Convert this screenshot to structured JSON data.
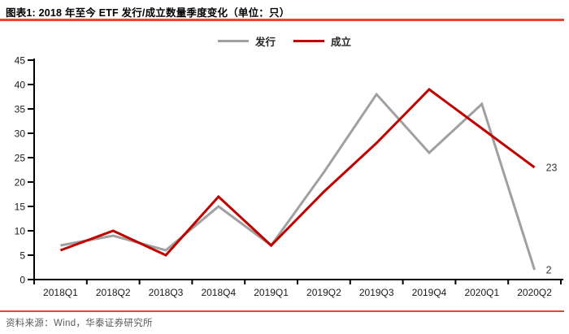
{
  "header": {
    "title": "图表1: 2018 年至今 ETF 发行/成立数量季度变化（单位：只）"
  },
  "footer": {
    "source": "资料来源：Wind，华泰证券研究所"
  },
  "colors": {
    "accent_red": "#e8442e",
    "series_issue_gray": "#a0a0a0",
    "series_establish_red": "#c00000",
    "axis_black": "#000000",
    "data_label_text": "#3a3a3a",
    "footer_text": "#5a5a5a"
  },
  "chart_data": {
    "type": "line",
    "title": "2018 年至今 ETF 发行/成立数量季度变化（单位：只）",
    "categories": [
      "2018Q1",
      "2018Q2",
      "2018Q3",
      "2018Q4",
      "2019Q1",
      "2019Q2",
      "2019Q3",
      "2019Q4",
      "2020Q1",
      "2020Q2"
    ],
    "series": [
      {
        "name": "发行",
        "color": "#a0a0a0",
        "values": [
          7,
          9,
          6,
          15,
          7,
          22,
          38,
          26,
          36,
          2
        ],
        "label_last": true,
        "last_label": "2"
      },
      {
        "name": "成立",
        "color": "#c00000",
        "values": [
          6,
          10,
          5,
          17,
          7,
          18,
          28,
          39,
          31,
          23
        ],
        "label_last": true,
        "last_label": "23"
      }
    ],
    "xlabel": "",
    "ylabel": "",
    "ylim": [
      0,
      45
    ],
    "ytick_step": 5,
    "yticks": [
      0,
      5,
      10,
      15,
      20,
      25,
      30,
      35,
      40,
      45
    ],
    "grid": false,
    "legend_position": "top-center"
  }
}
